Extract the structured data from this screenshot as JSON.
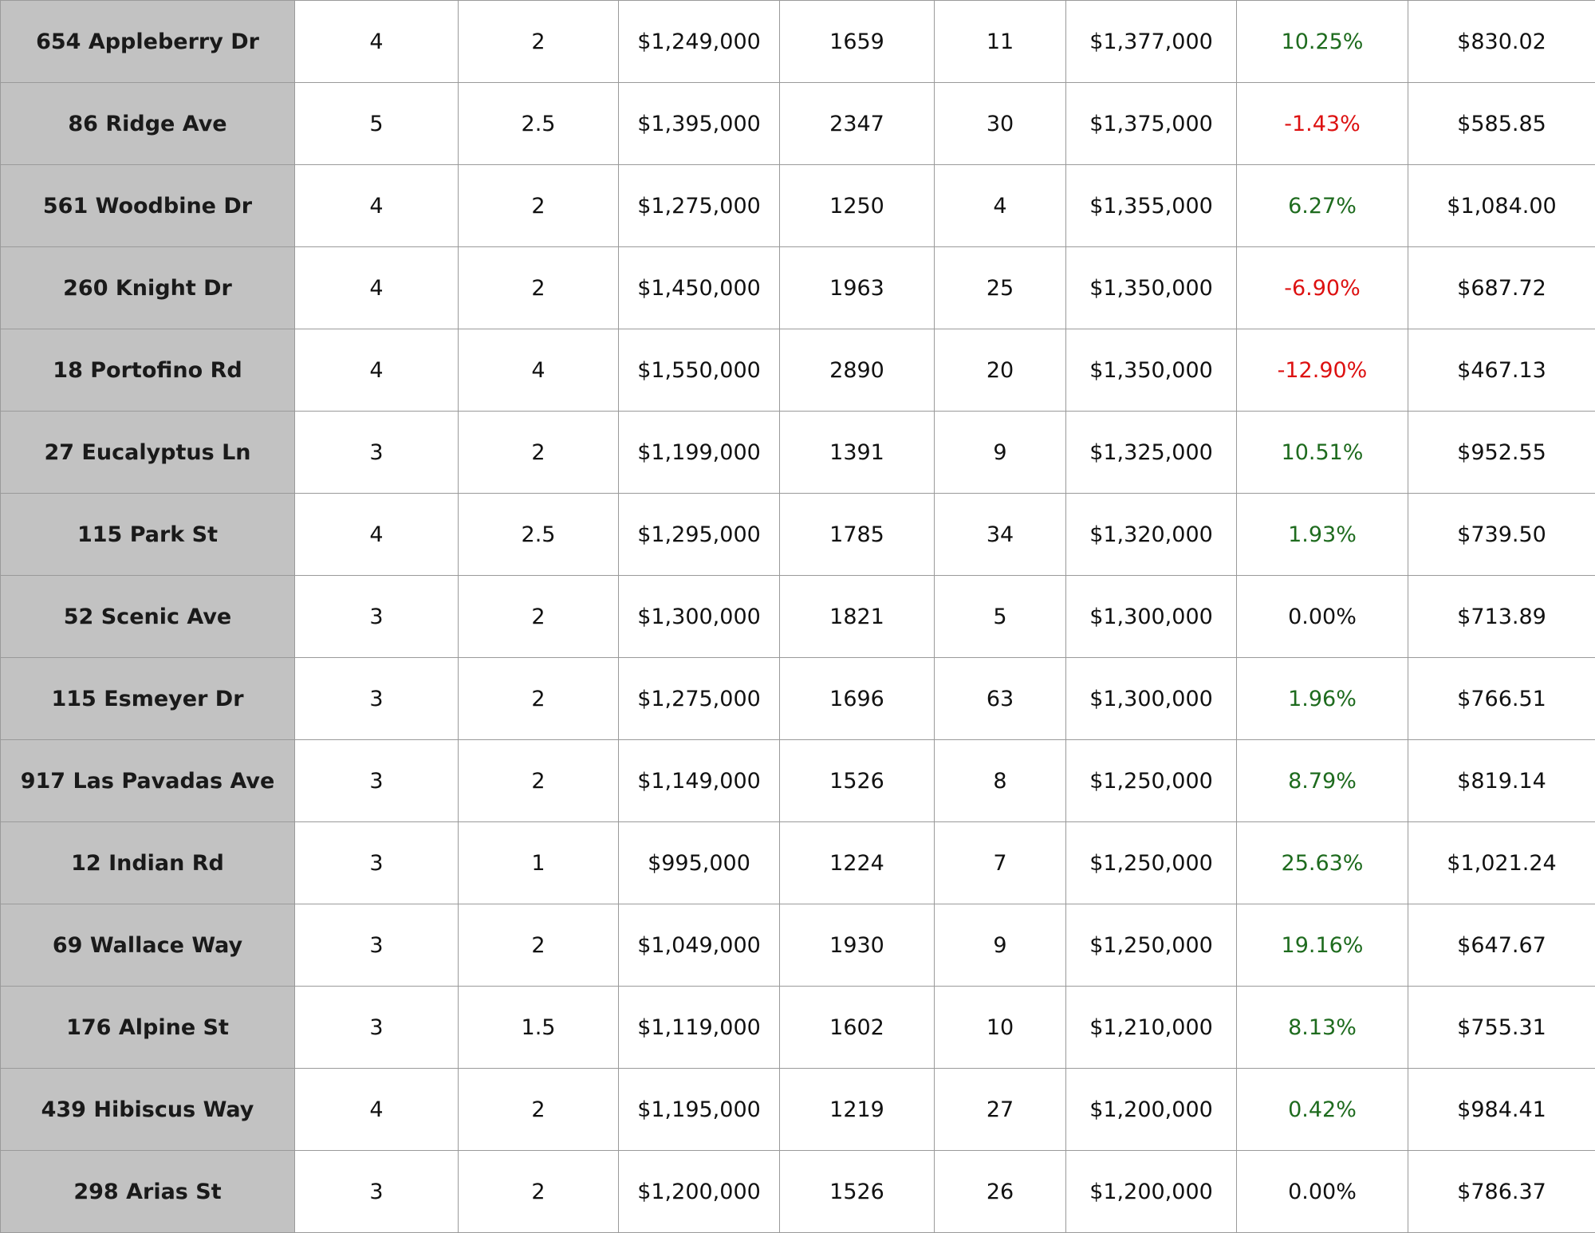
{
  "table": {
    "rows": [
      {
        "address": "654 Appleberry Dr",
        "beds": "4",
        "baths": "2",
        "list_price": "$1,249,000",
        "sqft": "1659",
        "days": "11",
        "sold_price": "$1,377,000",
        "pct_change": "10.25%",
        "pct_direction": "up",
        "price_per_sqft": "$830.02"
      },
      {
        "address": "86 Ridge Ave",
        "beds": "5",
        "baths": "2.5",
        "list_price": "$1,395,000",
        "sqft": "2347",
        "days": "30",
        "sold_price": "$1,375,000",
        "pct_change": "-1.43%",
        "pct_direction": "down",
        "price_per_sqft": "$585.85"
      },
      {
        "address": "561 Woodbine Dr",
        "beds": "4",
        "baths": "2",
        "list_price": "$1,275,000",
        "sqft": "1250",
        "days": "4",
        "sold_price": "$1,355,000",
        "pct_change": "6.27%",
        "pct_direction": "up",
        "price_per_sqft": "$1,084.00"
      },
      {
        "address": "260 Knight Dr",
        "beds": "4",
        "baths": "2",
        "list_price": "$1,450,000",
        "sqft": "1963",
        "days": "25",
        "sold_price": "$1,350,000",
        "pct_change": "-6.90%",
        "pct_direction": "down",
        "price_per_sqft": "$687.72"
      },
      {
        "address": "18 Portofino Rd",
        "beds": "4",
        "baths": "4",
        "list_price": "$1,550,000",
        "sqft": "2890",
        "days": "20",
        "sold_price": "$1,350,000",
        "pct_change": "-12.90%",
        "pct_direction": "down",
        "price_per_sqft": "$467.13"
      },
      {
        "address": "27 Eucalyptus Ln",
        "beds": "3",
        "baths": "2",
        "list_price": "$1,199,000",
        "sqft": "1391",
        "days": "9",
        "sold_price": "$1,325,000",
        "pct_change": "10.51%",
        "pct_direction": "up",
        "price_per_sqft": "$952.55"
      },
      {
        "address": "115 Park St",
        "beds": "4",
        "baths": "2.5",
        "list_price": "$1,295,000",
        "sqft": "1785",
        "days": "34",
        "sold_price": "$1,320,000",
        "pct_change": "1.93%",
        "pct_direction": "up",
        "price_per_sqft": "$739.50"
      },
      {
        "address": "52 Scenic Ave",
        "beds": "3",
        "baths": "2",
        "list_price": "$1,300,000",
        "sqft": "1821",
        "days": "5",
        "sold_price": "$1,300,000",
        "pct_change": "0.00%",
        "pct_direction": "flat",
        "price_per_sqft": "$713.89"
      },
      {
        "address": "115 Esmeyer Dr",
        "beds": "3",
        "baths": "2",
        "list_price": "$1,275,000",
        "sqft": "1696",
        "days": "63",
        "sold_price": "$1,300,000",
        "pct_change": "1.96%",
        "pct_direction": "up",
        "price_per_sqft": "$766.51"
      },
      {
        "address": "917 Las Pavadas Ave",
        "beds": "3",
        "baths": "2",
        "list_price": "$1,149,000",
        "sqft": "1526",
        "days": "8",
        "sold_price": "$1,250,000",
        "pct_change": "8.79%",
        "pct_direction": "up",
        "price_per_sqft": "$819.14"
      },
      {
        "address": "12 Indian Rd",
        "beds": "3",
        "baths": "1",
        "list_price": "$995,000",
        "sqft": "1224",
        "days": "7",
        "sold_price": "$1,250,000",
        "pct_change": "25.63%",
        "pct_direction": "up",
        "price_per_sqft": "$1,021.24"
      },
      {
        "address": "69 Wallace Way",
        "beds": "3",
        "baths": "2",
        "list_price": "$1,049,000",
        "sqft": "1930",
        "days": "9",
        "sold_price": "$1,250,000",
        "pct_change": "19.16%",
        "pct_direction": "up",
        "price_per_sqft": "$647.67"
      },
      {
        "address": "176 Alpine St",
        "beds": "3",
        "baths": "1.5",
        "list_price": "$1,119,000",
        "sqft": "1602",
        "days": "10",
        "sold_price": "$1,210,000",
        "pct_change": "8.13%",
        "pct_direction": "up",
        "price_per_sqft": "$755.31"
      },
      {
        "address": "439 Hibiscus Way",
        "beds": "4",
        "baths": "2",
        "list_price": "$1,195,000",
        "sqft": "1219",
        "days": "27",
        "sold_price": "$1,200,000",
        "pct_change": "0.42%",
        "pct_direction": "up",
        "price_per_sqft": "$984.41"
      },
      {
        "address": "298 Arias St",
        "beds": "3",
        "baths": "2",
        "list_price": "$1,200,000",
        "sqft": "1526",
        "days": "26",
        "sold_price": "$1,200,000",
        "pct_change": "0.00%",
        "pct_direction": "flat",
        "price_per_sqft": "$786.37"
      }
    ]
  },
  "colors": {
    "address_cell_bg": "#c2c2c2",
    "positive_change": "#1e6b1e",
    "negative_change": "#dd1111",
    "neutral_change": "#111111",
    "grid_line": "#9a9a9a"
  }
}
